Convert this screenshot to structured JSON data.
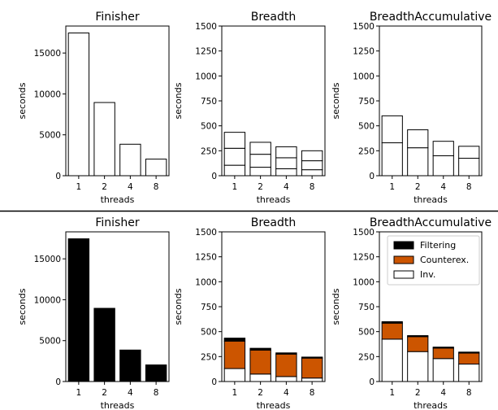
{
  "chart_data": [
    {
      "type": "bar",
      "stacked": true,
      "row": "top",
      "title": "Finisher",
      "xlabel": "threads",
      "ylabel": "seconds",
      "categories": [
        "1",
        "2",
        "4",
        "8"
      ],
      "ylim": [
        0,
        18300
      ],
      "yticks": [
        0,
        5000,
        10000,
        15000
      ],
      "yticklabels": [
        "0",
        "5000",
        "10000",
        "15000"
      ],
      "series": [
        {
          "values": [
            17450,
            8950,
            3850,
            2030
          ]
        }
      ]
    },
    {
      "type": "bar",
      "stacked": true,
      "row": "top",
      "title": "Breadth",
      "xlabel": "threads",
      "ylabel": "seconds",
      "categories": [
        "1",
        "2",
        "4",
        "8"
      ],
      "ylim": [
        0,
        1500
      ],
      "yticks": [
        0,
        250,
        500,
        750,
        1000,
        1250,
        1500
      ],
      "yticklabels": [
        "0",
        "250",
        "500",
        "750",
        "1000",
        "1250",
        "1500"
      ],
      "series": [
        {
          "values": [
            105,
            85,
            70,
            60
          ]
        },
        {
          "values": [
            170,
            130,
            110,
            90
          ]
        },
        {
          "values": [
            160,
            120,
            110,
            100
          ]
        }
      ]
    },
    {
      "type": "bar",
      "stacked": true,
      "row": "top",
      "title": "BreadthAccumulative",
      "xlabel": "threads",
      "ylabel": "seconds",
      "categories": [
        "1",
        "2",
        "4",
        "8"
      ],
      "ylim": [
        0,
        1500
      ],
      "yticks": [
        0,
        250,
        500,
        750,
        1000,
        1250,
        1500
      ],
      "yticklabels": [
        "0",
        "250",
        "500",
        "750",
        "1000",
        "1250",
        "1500"
      ],
      "series": [
        {
          "values": [
            330,
            280,
            200,
            175
          ]
        },
        {
          "values": [
            270,
            180,
            145,
            120
          ]
        }
      ]
    },
    {
      "type": "bar",
      "stacked": true,
      "row": "bottom",
      "title": "Finisher",
      "xlabel": "threads",
      "ylabel": "seconds",
      "categories": [
        "1",
        "2",
        "4",
        "8"
      ],
      "ylim": [
        0,
        18300
      ],
      "yticks": [
        0,
        5000,
        10000,
        15000
      ],
      "yticklabels": [
        "0",
        "5000",
        "10000",
        "15000"
      ],
      "series": [
        {
          "name": "Inv.",
          "values": [
            0,
            0,
            0,
            0
          ]
        },
        {
          "name": "Counterex.",
          "values": [
            60,
            40,
            30,
            25
          ]
        },
        {
          "name": "Filtering",
          "values": [
            17390,
            8910,
            3820,
            2005
          ]
        }
      ]
    },
    {
      "type": "bar",
      "stacked": true,
      "row": "bottom",
      "title": "Breadth",
      "xlabel": "threads",
      "ylabel": "seconds",
      "categories": [
        "1",
        "2",
        "4",
        "8"
      ],
      "ylim": [
        0,
        1500
      ],
      "yticks": [
        0,
        250,
        500,
        750,
        1000,
        1250,
        1500
      ],
      "yticklabels": [
        "0",
        "250",
        "500",
        "750",
        "1000",
        "1250",
        "1500"
      ],
      "series": [
        {
          "name": "Inv.",
          "values": [
            130,
            75,
            50,
            35
          ]
        },
        {
          "name": "Counterex.",
          "values": [
            275,
            240,
            225,
            200
          ]
        },
        {
          "name": "Filtering",
          "values": [
            30,
            18,
            12,
            10
          ]
        }
      ]
    },
    {
      "type": "bar",
      "stacked": true,
      "row": "bottom",
      "title": "BreadthAccumulative",
      "xlabel": "threads",
      "ylabel": "seconds",
      "categories": [
        "1",
        "2",
        "4",
        "8"
      ],
      "ylim": [
        0,
        1500
      ],
      "yticks": [
        0,
        250,
        500,
        750,
        1000,
        1250,
        1500
      ],
      "yticklabels": [
        "0",
        "250",
        "500",
        "750",
        "1000",
        "1250",
        "1500"
      ],
      "legend": {
        "placement": "top-right",
        "entries": [
          "Filtering",
          "Counterex.",
          "Inv."
        ]
      },
      "series": [
        {
          "name": "Inv.",
          "values": [
            425,
            300,
            230,
            175
          ]
        },
        {
          "name": "Counterex.",
          "values": [
            160,
            150,
            105,
            110
          ]
        },
        {
          "name": "Filtering",
          "values": [
            15,
            10,
            10,
            10
          ]
        }
      ]
    }
  ],
  "colors": {
    "Filtering": "#000000",
    "Counterex.": "#cc5500",
    "Inv.": "#ffffff",
    "bar_edge": "#000000",
    "divider": "#000000"
  }
}
